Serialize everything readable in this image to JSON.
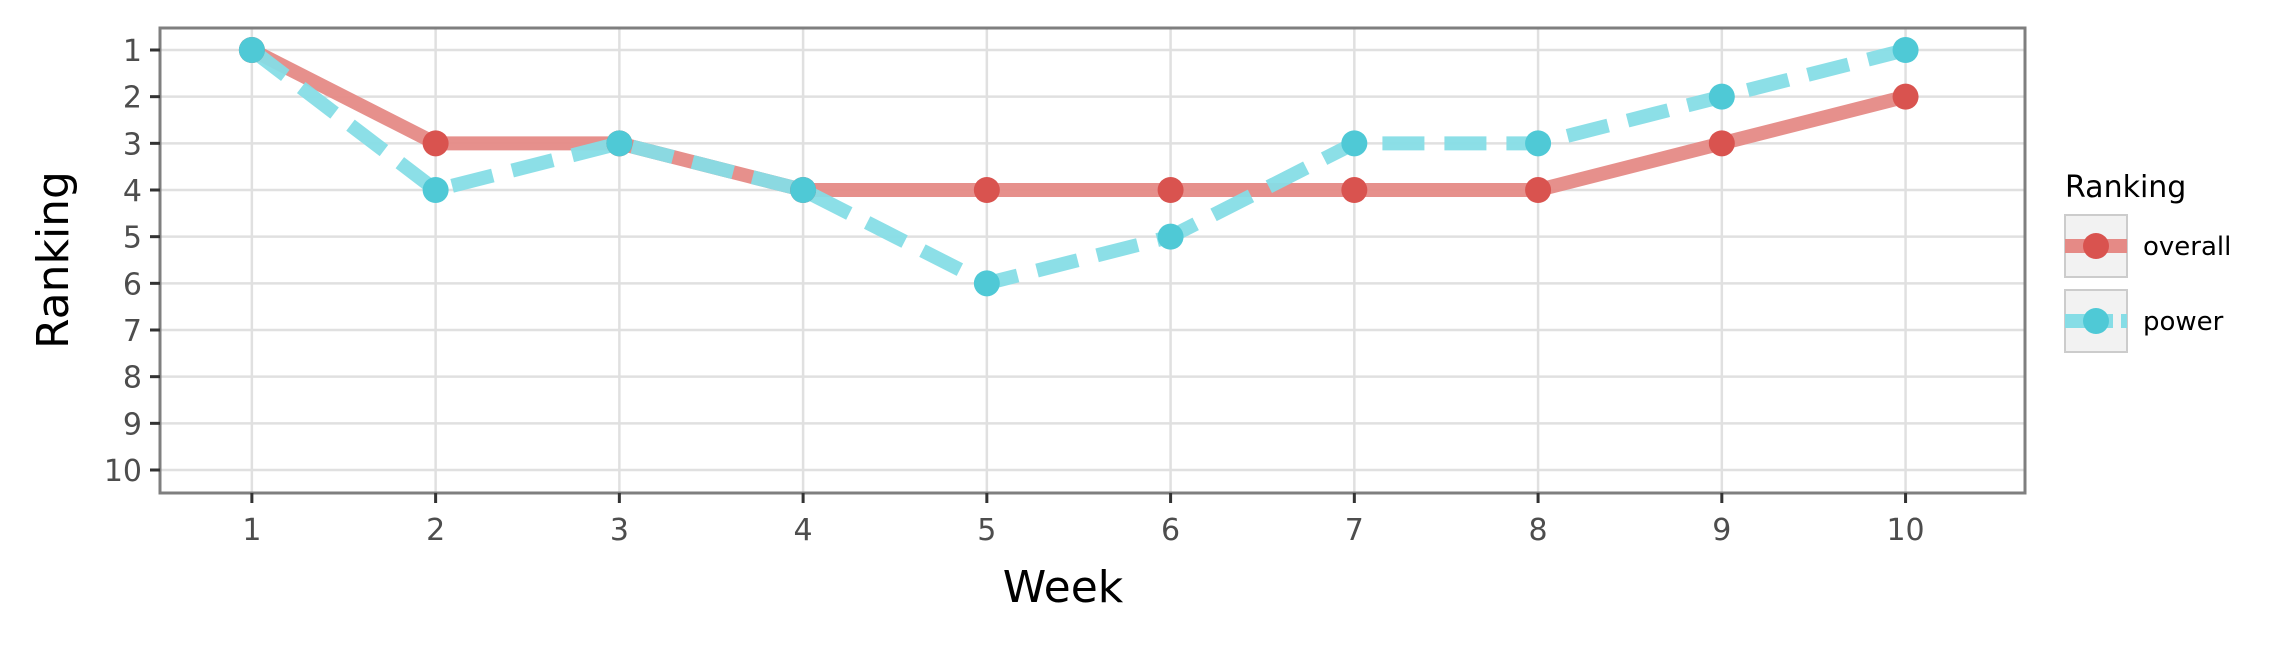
{
  "chart_data": {
    "type": "line",
    "xlabel": "Week",
    "ylabel": "Ranking",
    "x": [
      1,
      2,
      3,
      4,
      5,
      6,
      7,
      8,
      9,
      10
    ],
    "x_ticks": [
      "1",
      "2",
      "3",
      "4",
      "5",
      "6",
      "7",
      "8",
      "9",
      "10"
    ],
    "y_ticks": [
      "1",
      "2",
      "3",
      "4",
      "5",
      "6",
      "7",
      "8",
      "9",
      "10"
    ],
    "ylim": [
      1,
      10
    ],
    "y_reversed": true,
    "grid": true,
    "legend": {
      "title": "Ranking",
      "placement": "right"
    },
    "series": [
      {
        "name": "overall",
        "values": [
          1,
          3,
          3,
          4,
          4,
          4,
          4,
          4,
          3,
          2
        ],
        "line_color": "#e58a86",
        "marker_color": "#d9534f",
        "line_style": "solid"
      },
      {
        "name": "power",
        "values": [
          1,
          4,
          3,
          4,
          6,
          5,
          3,
          3,
          2,
          1
        ],
        "line_color": "#86dde6",
        "marker_color": "#4fc9d6",
        "line_style": "dashed"
      }
    ]
  }
}
